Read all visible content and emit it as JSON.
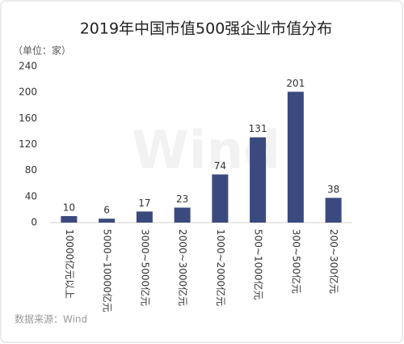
{
  "chart_data": {
    "type": "bar",
    "title": "2019年中国市值500强企业市值分布",
    "unit_label": "（单位：家）",
    "categories": [
      "10000亿元以上",
      "5000~10000亿元",
      "3000~5000亿元",
      "2000~3000亿元",
      "1000~2000亿元",
      "500~1000亿元",
      "300~500亿元",
      "200~300亿元"
    ],
    "values": [
      10,
      6,
      17,
      23,
      74,
      131,
      201,
      38
    ],
    "color": "#3b4a7e",
    "ylim": [
      0,
      240
    ],
    "yticks": [
      0,
      40,
      80,
      120,
      160,
      200,
      240
    ],
    "grid": false,
    "watermark": "Wind",
    "source": "数据来源：Wind"
  }
}
